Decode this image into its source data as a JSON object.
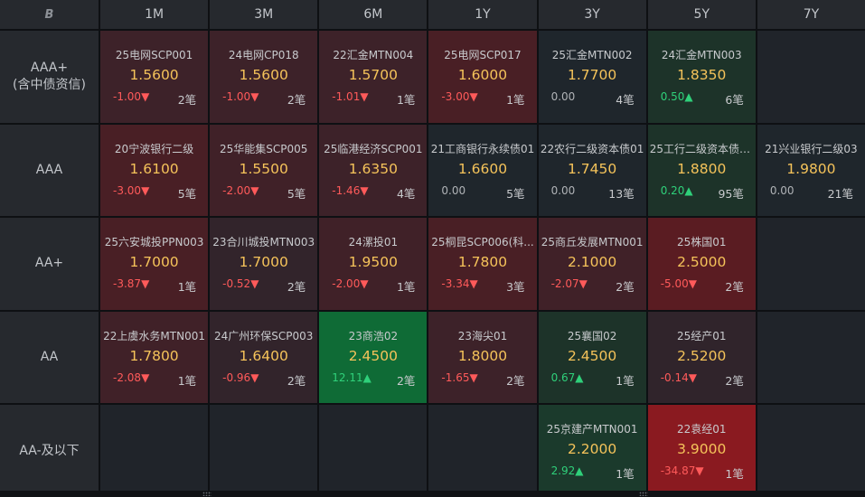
{
  "corner_icon": "B",
  "columns": [
    "1M",
    "3M",
    "6M",
    "1Y",
    "3Y",
    "5Y",
    "7Y"
  ],
  "rows": [
    {
      "label": "AAA+",
      "sublabel": "(含中债资信)",
      "cells": [
        {
          "name": "25电网SCP001",
          "rate": "1.5600",
          "change": "-1.00",
          "arrow": "▼",
          "dir": "up",
          "count": "2笔",
          "bg": "#3d2229"
        },
        {
          "name": "24电网CP018",
          "rate": "1.5600",
          "change": "-1.00",
          "arrow": "▼",
          "dir": "up",
          "count": "2笔",
          "bg": "#3d2229"
        },
        {
          "name": "22汇金MTN004",
          "rate": "1.5700",
          "change": "-1.01",
          "arrow": "▼",
          "dir": "up",
          "count": "1笔",
          "bg": "#3d2229"
        },
        {
          "name": "25电网SCP017",
          "rate": "1.6000",
          "change": "-3.00",
          "arrow": "▼",
          "dir": "up",
          "count": "1笔",
          "bg": "#491f25"
        },
        {
          "name": "25汇金MTN002",
          "rate": "1.7700",
          "change": "0.00",
          "arrow": "",
          "dir": "zero",
          "count": "4笔",
          "bg": "#1f262c"
        },
        {
          "name": "24汇金MTN003",
          "rate": "1.8350",
          "change": "0.50",
          "arrow": "▲",
          "dir": "dn",
          "count": "6笔",
          "bg": "#1d3329"
        },
        null
      ]
    },
    {
      "label": "AAA",
      "sublabel": "",
      "cells": [
        {
          "name": "20宁波银行二级",
          "rate": "1.6100",
          "change": "-3.00",
          "arrow": "▼",
          "dir": "up",
          "count": "5笔",
          "bg": "#491f25"
        },
        {
          "name": "25华能集SCP005",
          "rate": "1.5500",
          "change": "-2.00",
          "arrow": "▼",
          "dir": "up",
          "count": "5笔",
          "bg": "#402128"
        },
        {
          "name": "25临港经济SCP001",
          "rate": "1.6350",
          "change": "-1.46",
          "arrow": "▼",
          "dir": "up",
          "count": "4笔",
          "bg": "#3d2229"
        },
        {
          "name": "21工商银行永续债01",
          "rate": "1.6600",
          "change": "0.00",
          "arrow": "",
          "dir": "zero",
          "count": "5笔",
          "bg": "#1f262c"
        },
        {
          "name": "22农行二级资本债01",
          "rate": "1.7450",
          "change": "0.00",
          "arrow": "",
          "dir": "zero",
          "count": "13笔",
          "bg": "#1f262c"
        },
        {
          "name": "25工行二级资本债0...",
          "rate": "1.8800",
          "change": "0.20",
          "arrow": "▲",
          "dir": "dn",
          "count": "95笔",
          "bg": "#1d3329"
        },
        {
          "name": "21兴业银行二级03",
          "rate": "1.9800",
          "change": "0.00",
          "arrow": "",
          "dir": "zero",
          "count": "21笔",
          "bg": "#1f262c"
        }
      ]
    },
    {
      "label": "AA+",
      "sublabel": "",
      "cells": [
        {
          "name": "25六安城投PPN003",
          "rate": "1.7000",
          "change": "-3.87",
          "arrow": "▼",
          "dir": "up",
          "count": "1笔",
          "bg": "#491f25"
        },
        {
          "name": "23合川城投MTN003",
          "rate": "1.7000",
          "change": "-0.52",
          "arrow": "▼",
          "dir": "up",
          "count": "2笔",
          "bg": "#32242b"
        },
        {
          "name": "24漯投01",
          "rate": "1.9500",
          "change": "-2.00",
          "arrow": "▼",
          "dir": "up",
          "count": "1笔",
          "bg": "#402128"
        },
        {
          "name": "25桐昆SCP006(科...",
          "rate": "1.7800",
          "change": "-3.34",
          "arrow": "▼",
          "dir": "up",
          "count": "3笔",
          "bg": "#491f25"
        },
        {
          "name": "25商丘发展MTN001",
          "rate": "2.1000",
          "change": "-2.07",
          "arrow": "▼",
          "dir": "up",
          "count": "2笔",
          "bg": "#402128"
        },
        {
          "name": "25株国01",
          "rate": "2.5000",
          "change": "-5.00",
          "arrow": "▼",
          "dir": "up",
          "count": "2笔",
          "bg": "#5a1c22"
        },
        null
      ]
    },
    {
      "label": "AA",
      "sublabel": "",
      "cells": [
        {
          "name": "22上虞水务MTN001",
          "rate": "1.7800",
          "change": "-2.08",
          "arrow": "▼",
          "dir": "up",
          "count": "1笔",
          "bg": "#402128"
        },
        {
          "name": "24广州环保SCP003",
          "rate": "1.6400",
          "change": "-0.96",
          "arrow": "▼",
          "dir": "up",
          "count": "2笔",
          "bg": "#32242b"
        },
        {
          "name": "23商浩02",
          "rate": "2.4500",
          "change": "12.11",
          "arrow": "▲",
          "dir": "dn",
          "count": "2笔",
          "bg": "#0f6b36"
        },
        {
          "name": "23海尖01",
          "rate": "1.8000",
          "change": "-1.65",
          "arrow": "▼",
          "dir": "up",
          "count": "2笔",
          "bg": "#3d2229"
        },
        {
          "name": "25襄国02",
          "rate": "2.4500",
          "change": "0.67",
          "arrow": "▲",
          "dir": "dn",
          "count": "1笔",
          "bg": "#1d3329"
        },
        {
          "name": "25经产01",
          "rate": "2.5200",
          "change": "-0.14",
          "arrow": "▼",
          "dir": "up",
          "count": "2笔",
          "bg": "#30242b"
        },
        null
      ]
    },
    {
      "label": "AA-及以下",
      "sublabel": "",
      "cells": [
        null,
        null,
        null,
        null,
        {
          "name": "25京建产MTN001",
          "rate": "2.2000",
          "change": "2.92",
          "arrow": "▲",
          "dir": "dn",
          "count": "1笔",
          "bg": "#1b3a2c"
        },
        {
          "name": "22袁经01",
          "rate": "3.9000",
          "change": "-34.87",
          "arrow": "▼",
          "dir": "up",
          "count": "1笔",
          "bg": "#8a1a20"
        },
        null
      ]
    }
  ]
}
